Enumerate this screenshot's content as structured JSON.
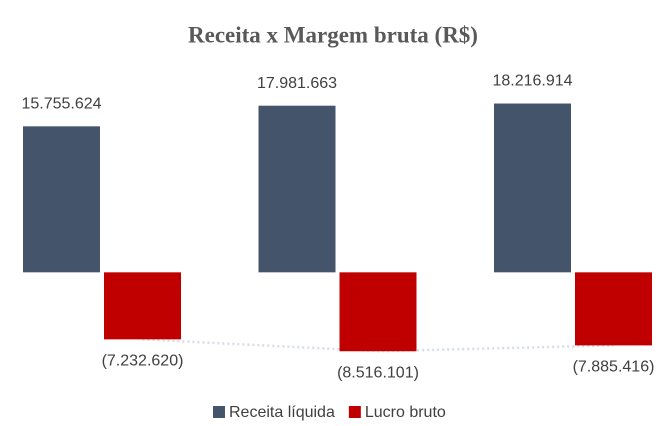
{
  "chart_data": {
    "type": "bar",
    "title": "Receita x Margem bruta (R$)",
    "categories": [
      null,
      null,
      null
    ],
    "series": [
      {
        "name": "Receita líquida",
        "color": "#44546a",
        "values": [
          15755624,
          17981663,
          18216914
        ],
        "value_labels": [
          "15.755.624",
          "17.981.663",
          "18.216.914"
        ]
      },
      {
        "name": "Lucro bruto",
        "color": "#c00000",
        "values": [
          -7232620,
          -8516101,
          -7885416
        ],
        "value_labels": [
          "(7.232.620)",
          "(8.516.101)",
          "(7.885.416)"
        ]
      }
    ],
    "ylim": [
      -10000000,
      20000000
    ],
    "legend": "bottom"
  }
}
